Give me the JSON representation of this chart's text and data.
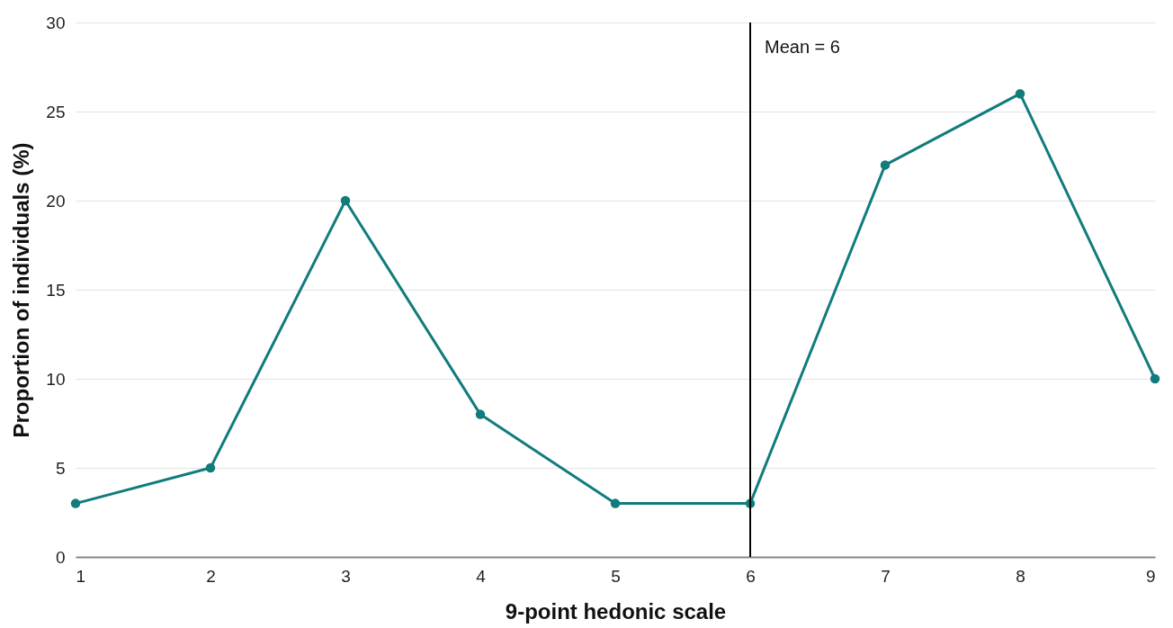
{
  "chart_data": {
    "type": "line",
    "xlabel": "9-point hedonic scale",
    "ylabel": "Proportion of individuals (%)",
    "x": [
      1,
      2,
      3,
      4,
      5,
      6,
      7,
      8,
      9
    ],
    "series": [
      {
        "color": "#127b7c",
        "values": [
          3,
          5,
          20,
          8,
          3,
          3,
          22,
          26,
          10
        ]
      }
    ],
    "xlim": [
      1,
      9
    ],
    "xticks": [
      1,
      2,
      3,
      4,
      5,
      6,
      7,
      8,
      9
    ],
    "ylim": [
      0,
      30
    ],
    "yticks": [
      0,
      5,
      10,
      15,
      20,
      25,
      30
    ],
    "grid": "y",
    "marker": "circle",
    "line_style": "solid",
    "ref_lines": [
      {
        "axis": "x",
        "value": 6,
        "label": "Mean = 6",
        "color": "#000000"
      }
    ]
  }
}
